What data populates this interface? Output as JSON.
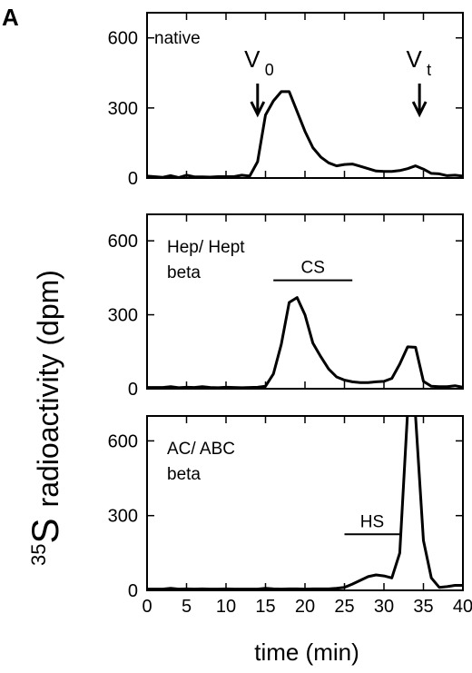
{
  "figure_label": "A",
  "ylabel_sup": "35",
  "ylabel_main": "S",
  "ylabel_rest": "radioactivity (dpm)",
  "xlabel": "time (min)",
  "chart_data": [
    {
      "type": "line",
      "panel": "top",
      "annotation_lines": [
        "native"
      ],
      "xlim": [
        0,
        40
      ],
      "ylim": [
        0,
        700
      ],
      "yticks": [
        0,
        300,
        600
      ],
      "xticks": [
        0,
        5,
        10,
        15,
        20,
        25,
        30,
        35,
        40
      ],
      "arrows": [
        {
          "label": "V",
          "sub": "0",
          "x": 14
        },
        {
          "label": "V",
          "sub": "t",
          "x": 34.5
        }
      ],
      "bars": [],
      "series": [
        {
          "x": [
            0,
            2,
            3,
            4,
            5,
            6,
            7,
            8,
            9,
            10,
            11,
            12,
            13,
            14,
            15,
            16,
            17,
            18,
            19,
            20,
            21,
            22,
            23,
            24,
            25,
            26,
            27,
            28,
            29,
            30,
            31,
            32,
            33,
            34,
            35,
            36,
            37,
            38,
            39,
            40
          ],
          "y": [
            8,
            3,
            10,
            2,
            12,
            5,
            5,
            4,
            6,
            6,
            6,
            12,
            8,
            70,
            270,
            330,
            370,
            370,
            285,
            200,
            130,
            90,
            65,
            52,
            58,
            60,
            50,
            40,
            30,
            28,
            28,
            32,
            40,
            52,
            38,
            20,
            18,
            10,
            12,
            8
          ]
        }
      ]
    },
    {
      "type": "line",
      "panel": "middle",
      "annotation_lines": [
        "Hep/ Hept",
        "beta"
      ],
      "xlim": [
        0,
        40
      ],
      "ylim": [
        0,
        700
      ],
      "yticks": [
        0,
        300,
        600
      ],
      "xticks": [
        0,
        5,
        10,
        15,
        20,
        25,
        30,
        35,
        40
      ],
      "arrows": [],
      "bars": [
        {
          "label": "CS",
          "x": [
            16,
            26
          ],
          "y": 440
        }
      ],
      "series": [
        {
          "x": [
            0,
            2,
            3,
            4,
            5,
            6,
            7,
            8,
            9,
            10,
            11,
            12,
            13,
            14,
            15,
            16,
            17,
            18,
            19,
            20,
            21,
            22,
            23,
            24,
            25,
            26,
            27,
            28,
            29,
            30,
            31,
            32,
            33,
            34,
            35,
            36,
            37,
            38,
            39,
            40
          ],
          "y": [
            5,
            5,
            8,
            4,
            6,
            5,
            8,
            5,
            4,
            6,
            5,
            4,
            5,
            6,
            10,
            60,
            180,
            350,
            370,
            300,
            185,
            130,
            80,
            48,
            35,
            28,
            25,
            25,
            28,
            30,
            42,
            100,
            170,
            168,
            30,
            10,
            8,
            8,
            12,
            6
          ]
        }
      ]
    },
    {
      "type": "line",
      "panel": "bottom",
      "annotation_lines": [
        "AC/ ABC",
        "beta"
      ],
      "xlim": [
        0,
        40
      ],
      "ylim": [
        0,
        700
      ],
      "yticks": [
        0,
        300,
        600
      ],
      "xticks": [
        0,
        5,
        10,
        15,
        20,
        25,
        30,
        35,
        40
      ],
      "arrows": [],
      "bars": [
        {
          "label": "HS",
          "x": [
            25,
            32
          ],
          "y": 225
        }
      ],
      "series": [
        {
          "x": [
            0,
            2,
            3,
            4,
            5,
            6,
            7,
            8,
            9,
            10,
            11,
            12,
            13,
            14,
            15,
            16,
            17,
            18,
            19,
            20,
            21,
            22,
            23,
            24,
            25,
            26,
            27,
            28,
            29,
            30,
            31,
            32,
            33,
            33.5,
            34,
            35,
            36,
            37,
            38,
            39,
            40
          ],
          "y": [
            5,
            5,
            8,
            5,
            6,
            5,
            6,
            5,
            5,
            6,
            5,
            5,
            5,
            5,
            8,
            6,
            5,
            6,
            6,
            5,
            6,
            6,
            6,
            8,
            12,
            25,
            40,
            55,
            62,
            58,
            50,
            150,
            720,
            720,
            700,
            200,
            50,
            12,
            15,
            20,
            20
          ]
        }
      ]
    }
  ]
}
